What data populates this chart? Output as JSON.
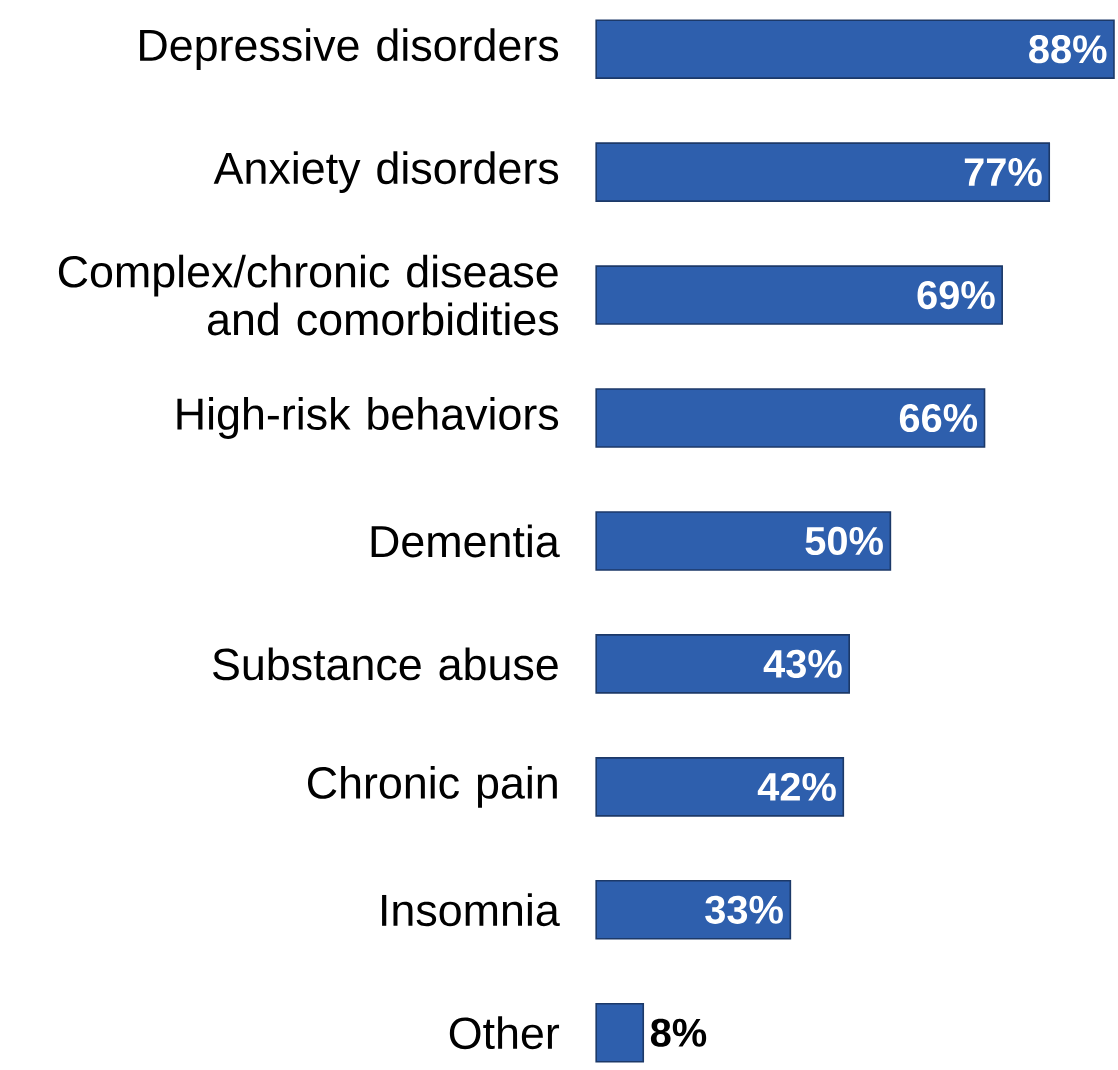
{
  "chart_data": {
    "type": "bar",
    "orientation": "horizontal",
    "categories": [
      "Depressive disorders",
      "Anxiety disorders",
      "Complex/chronic disease and comorbidities",
      "High-risk behaviors",
      "Dementia",
      "Substance abuse",
      "Chronic pain",
      "Insomnia",
      "Other"
    ],
    "values": [
      88,
      77,
      69,
      66,
      50,
      43,
      42,
      33,
      8
    ],
    "value_labels": [
      "88%",
      "77%",
      "69%",
      "66%",
      "50%",
      "43%",
      "42%",
      "33%",
      "8%"
    ],
    "color": "#2e5fad"
  }
}
